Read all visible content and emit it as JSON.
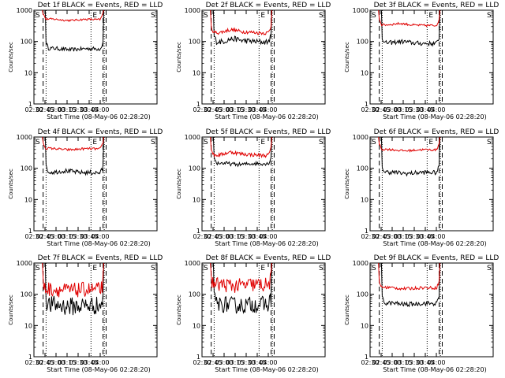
{
  "figure": {
    "xaxis_label": "Start Time (08-May-06 02:28:20)",
    "yaxis_label": "Counts/sec",
    "x_ticks": [
      "02:30",
      "02:45",
      "03:00",
      "03:15",
      "03:30",
      "03:45",
      "04:00"
    ],
    "y_ticks": [
      "1",
      "10",
      "100",
      "1000"
    ],
    "markers": [
      "S",
      "E",
      "S"
    ],
    "colors": {
      "events": "#000000",
      "lld": "#e00000"
    }
  },
  "chart_data": [
    {
      "type": "line",
      "title": "Det 1f BLACK = Events, RED = LLD",
      "xlabel": "Start Time (08-May-06 02:28:20)",
      "ylabel": "Counts/sec",
      "yscale": "log",
      "ylim": [
        1,
        1000
      ],
      "xlim_minutes_from_0230": [
        0,
        99
      ],
      "marker_lines_minutes": {
        "dashed": [
          12.5,
          93.8,
          98
        ],
        "dotted": [
          16.5,
          77.5,
          95.5
        ]
      },
      "series": [
        {
          "name": "Events",
          "color": "#000000",
          "start_minute": 16.5,
          "end_minute": 93.8,
          "baseline_level": 60,
          "profile": "flat",
          "noise": 0.01
        },
        {
          "name": "LLD",
          "color": "#e00000",
          "start_minute": 12.5,
          "end_minute": 93.8,
          "baseline_level": 520,
          "profile": "flat",
          "noise": 0.005
        }
      ]
    },
    {
      "type": "line",
      "title": "Det 2f BLACK = Events, RED = LLD",
      "xlabel": "Start Time (08-May-06 02:28:20)",
      "ylabel": "Counts/sec",
      "yscale": "log",
      "ylim": [
        1,
        1000
      ],
      "xlim_minutes_from_0230": [
        0,
        99
      ],
      "marker_lines_minutes": {
        "dashed": [
          12.5,
          93.8,
          98
        ],
        "dotted": [
          16.5,
          77.5,
          95.5
        ]
      },
      "series": [
        {
          "name": "Events",
          "color": "#000000",
          "start_minute": 16.5,
          "end_minute": 93.8,
          "baseline_level": 100,
          "profile": "hump",
          "noise": 0.015
        },
        {
          "name": "LLD",
          "color": "#e00000",
          "start_minute": 12.5,
          "end_minute": 93.8,
          "baseline_level": 195,
          "profile": "hump",
          "noise": 0.01
        }
      ]
    },
    {
      "type": "line",
      "title": "Det 3f BLACK = Events, RED = LLD",
      "xlabel": "Start Time (08-May-06 02:28:20)",
      "ylabel": "Counts/sec",
      "yscale": "log",
      "ylim": [
        1,
        1000
      ],
      "xlim_minutes_from_0230": [
        0,
        99
      ],
      "marker_lines_minutes": {
        "dashed": [
          12.5,
          93.8,
          98
        ],
        "dotted": [
          16.5,
          77.5,
          95.5
        ]
      },
      "series": [
        {
          "name": "Events",
          "color": "#000000",
          "start_minute": 16.5,
          "end_minute": 93.8,
          "baseline_level": 90,
          "profile": "bump",
          "noise": 0.012
        },
        {
          "name": "LLD",
          "color": "#e00000",
          "start_minute": 12.5,
          "end_minute": 93.8,
          "baseline_level": 340,
          "profile": "bump",
          "noise": 0.006
        }
      ]
    },
    {
      "type": "line",
      "title": "Det 4f BLACK = Events, RED = LLD",
      "xlabel": "Start Time (08-May-06 02:28:20)",
      "ylabel": "Counts/sec",
      "yscale": "log",
      "ylim": [
        1,
        1000
      ],
      "xlim_minutes_from_0230": [
        0,
        99
      ],
      "marker_lines_minutes": {
        "dashed": [
          12.5,
          93.8,
          98
        ],
        "dotted": [
          16.5,
          77.5,
          95.5
        ]
      },
      "series": [
        {
          "name": "Events",
          "color": "#000000",
          "start_minute": 16.5,
          "end_minute": 93.8,
          "baseline_level": 75,
          "profile": "bump",
          "noise": 0.012
        },
        {
          "name": "LLD",
          "color": "#e00000",
          "start_minute": 12.5,
          "end_minute": 93.8,
          "baseline_level": 430,
          "profile": "flat",
          "noise": 0.006
        }
      ]
    },
    {
      "type": "line",
      "title": "Det 5f BLACK = Events, RED = LLD",
      "xlabel": "Start Time (08-May-06 02:28:20)",
      "ylabel": "Counts/sec",
      "yscale": "log",
      "ylim": [
        1,
        1000
      ],
      "xlim_minutes_from_0230": [
        0,
        99
      ],
      "marker_lines_minutes": {
        "dashed": [
          12.5,
          93.8,
          98
        ],
        "dotted": [
          16.5,
          77.5,
          95.5
        ]
      },
      "series": [
        {
          "name": "Events",
          "color": "#000000",
          "start_minute": 16.5,
          "end_minute": 93.8,
          "baseline_level": 145,
          "profile": "flat",
          "noise": 0.01
        },
        {
          "name": "LLD",
          "color": "#e00000",
          "start_minute": 12.5,
          "end_minute": 93.8,
          "baseline_level": 270,
          "profile": "hump",
          "noise": 0.01
        }
      ]
    },
    {
      "type": "line",
      "title": "Det 6f BLACK = Events, RED = LLD",
      "xlabel": "Start Time (08-May-06 02:28:20)",
      "ylabel": "Counts/sec",
      "yscale": "log",
      "ylim": [
        1,
        1000
      ],
      "xlim_minutes_from_0230": [
        0,
        99
      ],
      "marker_lines_minutes": {
        "dashed": [
          12.5,
          93.8,
          98
        ],
        "dotted": [
          16.5,
          77.5,
          95.5
        ]
      },
      "series": [
        {
          "name": "Events",
          "color": "#000000",
          "start_minute": 16.5,
          "end_minute": 93.8,
          "baseline_level": 75,
          "profile": "flat",
          "noise": 0.012
        },
        {
          "name": "LLD",
          "color": "#e00000",
          "start_minute": 12.5,
          "end_minute": 93.8,
          "baseline_level": 400,
          "profile": "flat",
          "noise": 0.006
        }
      ]
    },
    {
      "type": "line",
      "title": "Det 7f BLACK = Events, RED = LLD",
      "xlabel": "Start Time (08-May-06 02:28:20)",
      "ylabel": "Counts/sec",
      "yscale": "log",
      "ylim": [
        1,
        1000
      ],
      "xlim_minutes_from_0230": [
        0,
        99
      ],
      "marker_lines_minutes": {
        "dashed": [
          12.5,
          93.8,
          98
        ],
        "dotted": [
          16.5,
          77.5,
          95.5
        ]
      },
      "series": [
        {
          "name": "Events",
          "color": "#000000",
          "start_minute": 16.5,
          "end_minute": 93.8,
          "baseline_level": 45,
          "profile": "flat",
          "noise": 0.05
        },
        {
          "name": "LLD",
          "color": "#e00000",
          "start_minute": 12.5,
          "end_minute": 93.8,
          "baseline_level": 145,
          "profile": "flat",
          "noise": 0.04
        }
      ]
    },
    {
      "type": "line",
      "title": "Det 8f BLACK = Events, RED = LLD",
      "xlabel": "Start Time (08-May-06 02:28:20)",
      "ylabel": "Counts/sec",
      "yscale": "log",
      "ylim": [
        1,
        1000
      ],
      "xlim_minutes_from_0230": [
        0,
        99
      ],
      "marker_lines_minutes": {
        "dashed": [
          12.5,
          93.8,
          98
        ],
        "dotted": [
          16.5,
          77.5,
          95.5
        ]
      },
      "series": [
        {
          "name": "Events",
          "color": "#000000",
          "start_minute": 16.5,
          "end_minute": 93.8,
          "baseline_level": 48,
          "profile": "flat",
          "noise": 0.045
        },
        {
          "name": "LLD",
          "color": "#e00000",
          "start_minute": 12.5,
          "end_minute": 93.8,
          "baseline_level": 205,
          "profile": "flat",
          "noise": 0.04
        }
      ]
    },
    {
      "type": "line",
      "title": "Det 9f BLACK = Events, RED = LLD",
      "xlabel": "Start Time (08-May-06 02:28:20)",
      "ylabel": "Counts/sec",
      "yscale": "log",
      "ylim": [
        1,
        1000
      ],
      "xlim_minutes_from_0230": [
        0,
        99
      ],
      "marker_lines_minutes": {
        "dashed": [
          12.5,
          93.8,
          98
        ],
        "dotted": [
          16.5,
          77.5,
          95.5
        ]
      },
      "series": [
        {
          "name": "Events",
          "color": "#000000",
          "start_minute": 16.5,
          "end_minute": 93.8,
          "baseline_level": 52,
          "profile": "flat",
          "noise": 0.012
        },
        {
          "name": "LLD",
          "color": "#e00000",
          "start_minute": 12.5,
          "end_minute": 93.8,
          "baseline_level": 165,
          "profile": "flat",
          "noise": 0.008
        }
      ]
    }
  ]
}
